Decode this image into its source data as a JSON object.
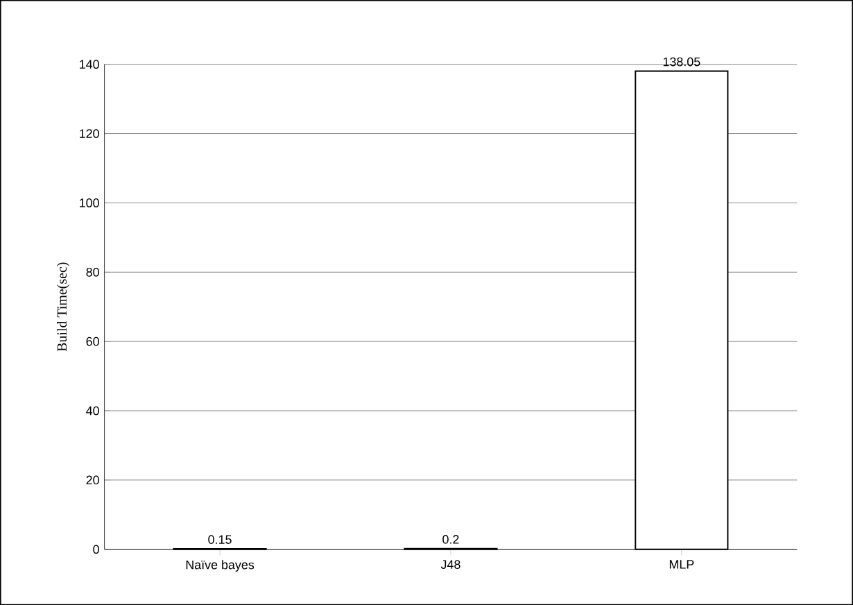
{
  "chart_data": {
    "type": "bar",
    "ylabel": "Build Time(sec)",
    "categories": [
      "Naïve bayes",
      "J48",
      "MLP"
    ],
    "values": [
      0.15,
      0.2,
      138.05
    ],
    "color": "#ffffff",
    "ylim": [
      0,
      140
    ],
    "yticks": [
      0,
      20,
      40,
      60,
      80,
      100,
      120,
      140
    ],
    "grid": "y",
    "data_labels": true
  }
}
